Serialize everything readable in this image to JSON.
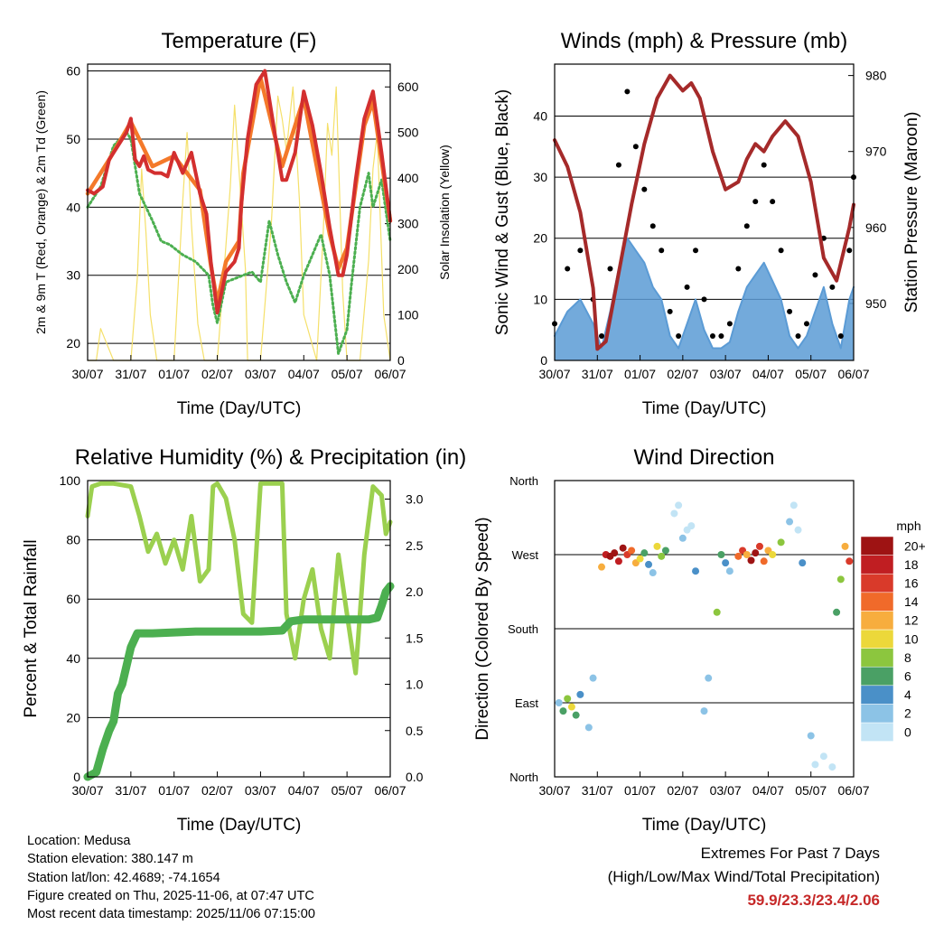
{
  "colors": {
    "temp_2m": "#d32f2f",
    "temp_9m": "#f4792a",
    "dewpoint": "#4caf50",
    "solar": "#f5e06a",
    "wind": "#5b9bd5",
    "gust": "#000000",
    "pressure": "#a52a2a",
    "rh": "#9bd04f",
    "precip": "#4caf50"
  },
  "x_ticks": [
    "30/07",
    "31/07",
    "01/07",
    "02/07",
    "03/07",
    "04/07",
    "05/07",
    "06/07"
  ],
  "chart_data": [
    {
      "id": "temperature",
      "type": "line",
      "title": "Temperature (F)",
      "xlabel": "Time (Day/UTC)",
      "ylabel": "2m & 9m T (Red, Orange) & 2m Td (Green)",
      "ylabel_right": "Solar Insolation (Yellow)",
      "ylim": [
        17.5,
        61
      ],
      "yticks": [
        20,
        30,
        40,
        50,
        60
      ],
      "ylim_right": [
        0,
        650
      ],
      "yticks_right": [
        0,
        100,
        200,
        300,
        400,
        500,
        600
      ],
      "xlim": [
        0,
        7
      ],
      "series": [
        {
          "name": "2m T",
          "x": [
            0,
            0.15,
            0.35,
            0.5,
            0.65,
            0.9,
            1.0,
            1.1,
            1.2,
            1.3,
            1.4,
            1.55,
            1.7,
            1.85,
            2.0,
            2.2,
            2.4,
            2.6,
            2.75,
            2.85,
            3.0,
            3.2,
            3.4,
            3.5,
            3.55,
            3.7,
            3.9,
            4.1,
            4.3,
            4.5,
            4.6,
            4.8,
            5.0,
            5.2,
            5.4,
            5.6,
            5.8,
            5.9,
            6.0,
            6.2,
            6.4,
            6.6,
            6.8,
            7.0
          ],
          "values": [
            42.5,
            42,
            43,
            47,
            48.5,
            51,
            53,
            47,
            46,
            47.5,
            45.5,
            45,
            45,
            44.5,
            48,
            45,
            48,
            42,
            39,
            32,
            24.5,
            30.5,
            32,
            34,
            40,
            50,
            58,
            60,
            52,
            44,
            44,
            48,
            57,
            52,
            45,
            37,
            30,
            30,
            33,
            44,
            53,
            57,
            48,
            38
          ]
        },
        {
          "name": "9m T",
          "x": [
            0,
            0.5,
            1.0,
            1.5,
            2.0,
            2.6,
            2.85,
            3.0,
            3.2,
            3.4,
            3.5,
            3.6,
            3.8,
            4.0,
            4.5,
            5.0,
            5.6,
            5.8,
            6.0,
            6.4,
            6.6,
            7.0
          ],
          "values": [
            42,
            47,
            52.5,
            46,
            47.5,
            42.5,
            31.5,
            26,
            32,
            34,
            35,
            45,
            52,
            59,
            46,
            56,
            36,
            31,
            34,
            52,
            55.5,
            38
          ]
        },
        {
          "name": "2m Td",
          "x": [
            0,
            0.3,
            0.6,
            0.9,
            1.0,
            1.2,
            1.5,
            1.7,
            1.9,
            2.2,
            2.5,
            2.8,
            2.9,
            3.0,
            3.2,
            3.4,
            3.6,
            3.8,
            4.0,
            4.2,
            4.4,
            4.6,
            4.8,
            5.0,
            5.2,
            5.4,
            5.6,
            5.8,
            6.0,
            6.1,
            6.3,
            6.5,
            6.6,
            6.8,
            7.0
          ],
          "values": [
            40,
            43,
            49,
            51,
            50,
            42,
            38,
            35,
            34.5,
            33,
            32,
            30,
            25.5,
            23,
            29,
            29.5,
            30,
            30.5,
            29,
            38,
            33,
            29,
            26,
            30,
            33,
            36,
            30,
            18.5,
            22,
            28.5,
            40,
            45,
            40,
            44,
            35
          ]
        },
        {
          "name": "Solar",
          "axis": "right",
          "x": [
            0,
            0.2,
            0.3,
            0.45,
            0.6,
            1.0,
            1.15,
            1.25,
            1.35,
            1.45,
            1.6,
            2.0,
            2.2,
            2.3,
            2.4,
            2.55,
            2.7,
            3.0,
            3.3,
            3.4,
            3.5,
            3.65,
            3.7,
            4.0,
            4.25,
            4.4,
            4.5,
            4.6,
            4.75,
            4.9,
            5.0,
            5.3,
            5.45,
            5.55,
            5.65,
            5.75,
            5.9,
            6.0,
            6.3,
            6.5,
            6.6,
            6.7,
            6.85,
            7.0
          ],
          "values": [
            0,
            0,
            70,
            35,
            0,
            0,
            180,
            420,
            280,
            100,
            0,
            0,
            350,
            500,
            300,
            80,
            0,
            0,
            380,
            560,
            420,
            200,
            0,
            0,
            300,
            580,
            530,
            460,
            600,
            350,
            100,
            0,
            280,
            520,
            450,
            600,
            150,
            0,
            0,
            220,
            420,
            500,
            100,
            0
          ]
        }
      ]
    },
    {
      "id": "winds",
      "type": "scatter",
      "title": "Winds (mph) & Pressure (mb)",
      "xlabel": "Time (Day/UTC)",
      "ylabel": "Sonic Wind & Gust (Blue, Black)",
      "ylabel_right": "Station Pressure (Maroon)",
      "ylim": [
        0,
        48.5
      ],
      "yticks": [
        0,
        10,
        20,
        30,
        40
      ],
      "ylim_right": [
        942.5,
        981.5
      ],
      "yticks_right": [
        950,
        960,
        970,
        980
      ],
      "xlim": [
        0,
        7
      ],
      "series": [
        {
          "name": "Wind",
          "x": [
            0,
            0.3,
            0.6,
            0.9,
            1.1,
            1.3,
            1.5,
            1.7,
            1.9,
            2.1,
            2.3,
            2.5,
            2.7,
            2.9,
            3.1,
            3.3,
            3.5,
            3.7,
            3.9,
            4.1,
            4.3,
            4.5,
            4.7,
            4.9,
            5.1,
            5.3,
            5.5,
            5.7,
            5.9,
            6.1,
            6.3,
            6.5,
            6.7,
            6.9,
            7.0
          ],
          "values": [
            4,
            8,
            10,
            6,
            2,
            8,
            15,
            20,
            18,
            16,
            12,
            10,
            4,
            2,
            6,
            10,
            5,
            2,
            2,
            3,
            8,
            12,
            14,
            16,
            13,
            10,
            4,
            2,
            4,
            8,
            12,
            6,
            2,
            10,
            12
          ]
        },
        {
          "name": "Gust",
          "x": [
            0,
            0.3,
            0.6,
            0.9,
            1.1,
            1.3,
            1.5,
            1.7,
            1.9,
            2.1,
            2.3,
            2.5,
            2.7,
            2.9,
            3.1,
            3.3,
            3.5,
            3.7,
            3.9,
            4.1,
            4.3,
            4.5,
            4.7,
            4.9,
            5.1,
            5.3,
            5.5,
            5.7,
            5.9,
            6.1,
            6.3,
            6.5,
            6.7,
            6.9,
            7.0
          ],
          "values": [
            6,
            15,
            18,
            10,
            4,
            15,
            32,
            44,
            35,
            28,
            22,
            18,
            8,
            4,
            12,
            18,
            10,
            4,
            4,
            6,
            15,
            22,
            26,
            32,
            26,
            18,
            8,
            4,
            6,
            14,
            20,
            12,
            4,
            18,
            30
          ]
        },
        {
          "name": "Pressure",
          "axis": "right",
          "x": [
            0,
            0.3,
            0.6,
            0.9,
            1.0,
            1.2,
            1.5,
            1.8,
            2.1,
            2.4,
            2.7,
            3.0,
            3.2,
            3.4,
            3.7,
            4.0,
            4.3,
            4.5,
            4.7,
            4.9,
            5.1,
            5.4,
            5.7,
            6.0,
            6.3,
            6.6,
            6.9,
            7.0
          ],
          "values": [
            971.5,
            968,
            962,
            952,
            944,
            945,
            954,
            963,
            971,
            977,
            980,
            978,
            979,
            977,
            970,
            965,
            966,
            969,
            971,
            970,
            972,
            974,
            972,
            966,
            956,
            953,
            960,
            963
          ]
        }
      ]
    },
    {
      "id": "humidity",
      "type": "line",
      "title": "Relative Humidity (%) & Precipitation (in)",
      "xlabel": "Time (Day/UTC)",
      "ylabel": "Percent & Total Rainfall",
      "ylim": [
        0,
        100
      ],
      "yticks": [
        0,
        20,
        40,
        60,
        80,
        100
      ],
      "ylim_right": [
        0,
        3.2
      ],
      "yticks_right": [
        "0.0",
        "0.5",
        "1.0",
        "1.5",
        "2.0",
        "2.5",
        "3.0"
      ],
      "xlim": [
        0,
        7
      ],
      "series": [
        {
          "name": "RH",
          "x": [
            0,
            0.1,
            0.3,
            0.6,
            1.0,
            1.2,
            1.4,
            1.6,
            1.8,
            2.0,
            2.2,
            2.4,
            2.6,
            2.8,
            2.9,
            3.0,
            3.2,
            3.4,
            3.6,
            3.8,
            4.0,
            4.2,
            4.35,
            4.5,
            4.6,
            4.8,
            5.0,
            5.2,
            5.4,
            5.6,
            5.8,
            6.0,
            6.2,
            6.4,
            6.6,
            6.8,
            6.9,
            7.0
          ],
          "values": [
            88,
            98,
            99,
            99,
            98,
            88,
            76,
            82,
            72,
            80,
            70,
            88,
            66,
            70,
            98,
            99,
            94,
            80,
            55,
            52,
            99,
            99,
            99,
            99,
            55,
            40,
            60,
            70,
            50,
            40,
            75,
            55,
            35,
            75,
            98,
            95,
            82,
            86
          ]
        },
        {
          "name": "Precip",
          "axis": "right",
          "x": [
            0,
            0.2,
            0.35,
            0.5,
            0.6,
            0.7,
            0.8,
            0.9,
            1.0,
            1.1,
            1.15,
            1.5,
            2.0,
            2.5,
            3.0,
            3.5,
            4.0,
            4.5,
            4.7,
            5.0,
            5.5,
            6.0,
            6.5,
            6.7,
            6.8,
            6.9,
            7.0
          ],
          "values": [
            0,
            0.05,
            0.3,
            0.5,
            0.6,
            0.9,
            1.0,
            1.2,
            1.4,
            1.5,
            1.55,
            1.55,
            1.56,
            1.57,
            1.57,
            1.57,
            1.57,
            1.58,
            1.68,
            1.7,
            1.7,
            1.7,
            1.7,
            1.72,
            1.85,
            2.0,
            2.06
          ]
        }
      ]
    },
    {
      "id": "wind_direction",
      "type": "scatter",
      "title": "Wind Direction",
      "xlabel": "Time (Day/UTC)",
      "ylabel": "Direction (Colored By Speed)",
      "yticks": [
        "North",
        "East",
        "South",
        "West",
        "North"
      ],
      "ylim": [
        0,
        360
      ],
      "xlim": [
        0,
        7
      ],
      "series": [
        {
          "name": "Direction",
          "x": [
            0.1,
            0.2,
            0.3,
            0.4,
            0.5,
            0.6,
            0.8,
            0.9,
            1.1,
            1.2,
            1.3,
            1.4,
            1.5,
            1.6,
            1.7,
            1.8,
            1.9,
            2.0,
            2.1,
            2.2,
            2.3,
            2.4,
            2.5,
            2.6,
            2.8,
            2.9,
            3.0,
            3.1,
            3.2,
            3.3,
            3.5,
            3.6,
            3.8,
            3.9,
            4.0,
            4.1,
            4.3,
            4.4,
            4.5,
            4.6,
            4.7,
            4.8,
            4.9,
            5.0,
            5.1,
            5.3,
            5.5,
            5.6,
            5.7,
            5.8,
            6.0,
            6.1,
            6.3,
            6.5,
            6.6,
            6.7,
            6.8,
            6.9
          ],
          "values": [
            90,
            80,
            95,
            85,
            75,
            100,
            60,
            120,
            255,
            270,
            268,
            272,
            262,
            278,
            270,
            275,
            260,
            265,
            272,
            258,
            248,
            280,
            268,
            275,
            320,
            330,
            290,
            300,
            305,
            250,
            80,
            120,
            200,
            270,
            260,
            250,
            268,
            275,
            270,
            263,
            272,
            280,
            262,
            275,
            270,
            285,
            310,
            330,
            300,
            260,
            50,
            15,
            25,
            12,
            200,
            240,
            280,
            262
          ],
          "speeds": [
            3,
            6,
            8,
            10,
            6,
            4,
            3,
            2,
            12,
            18,
            20,
            22,
            18,
            20,
            16,
            14,
            12,
            10,
            6,
            4,
            2,
            10,
            8,
            6,
            1,
            1,
            2,
            1,
            0,
            4,
            3,
            2,
            8,
            6,
            4,
            3,
            14,
            16,
            12,
            20,
            22,
            16,
            14,
            12,
            10,
            8,
            2,
            0,
            1,
            4,
            3,
            1,
            0,
            1,
            6,
            8,
            12,
            16
          ]
        }
      ],
      "colorbar": {
        "label": "mph",
        "levels": [
          "0",
          "2",
          "4",
          "6",
          "8",
          "10",
          "12",
          "14",
          "16",
          "18",
          "20+"
        ]
      }
    }
  ],
  "info": {
    "location": "Location: Medusa",
    "elevation": "Station elevation: 380.147 m",
    "latlon": "Station lat/lon: 42.4689; -74.1654",
    "created": "Figure created on Thu, 2025-11-06, at 07:47 UTC",
    "recent": "Most recent data timestamp: 2025/11/06 07:15:00"
  },
  "extremes": {
    "title": "Extremes For Past 7 Days",
    "subtitle": "(High/Low/Max Wind/Total Precipitation)",
    "values": "59.9/23.3/23.4/2.06"
  },
  "speed_colors": [
    "#c2e4f5",
    "#8cc3e6",
    "#4a90c8",
    "#4aa065",
    "#8cc63e",
    "#ecd83a",
    "#f7ad3e",
    "#f06a2a",
    "#d93a2a",
    "#c01e22",
    "#9e1313"
  ]
}
